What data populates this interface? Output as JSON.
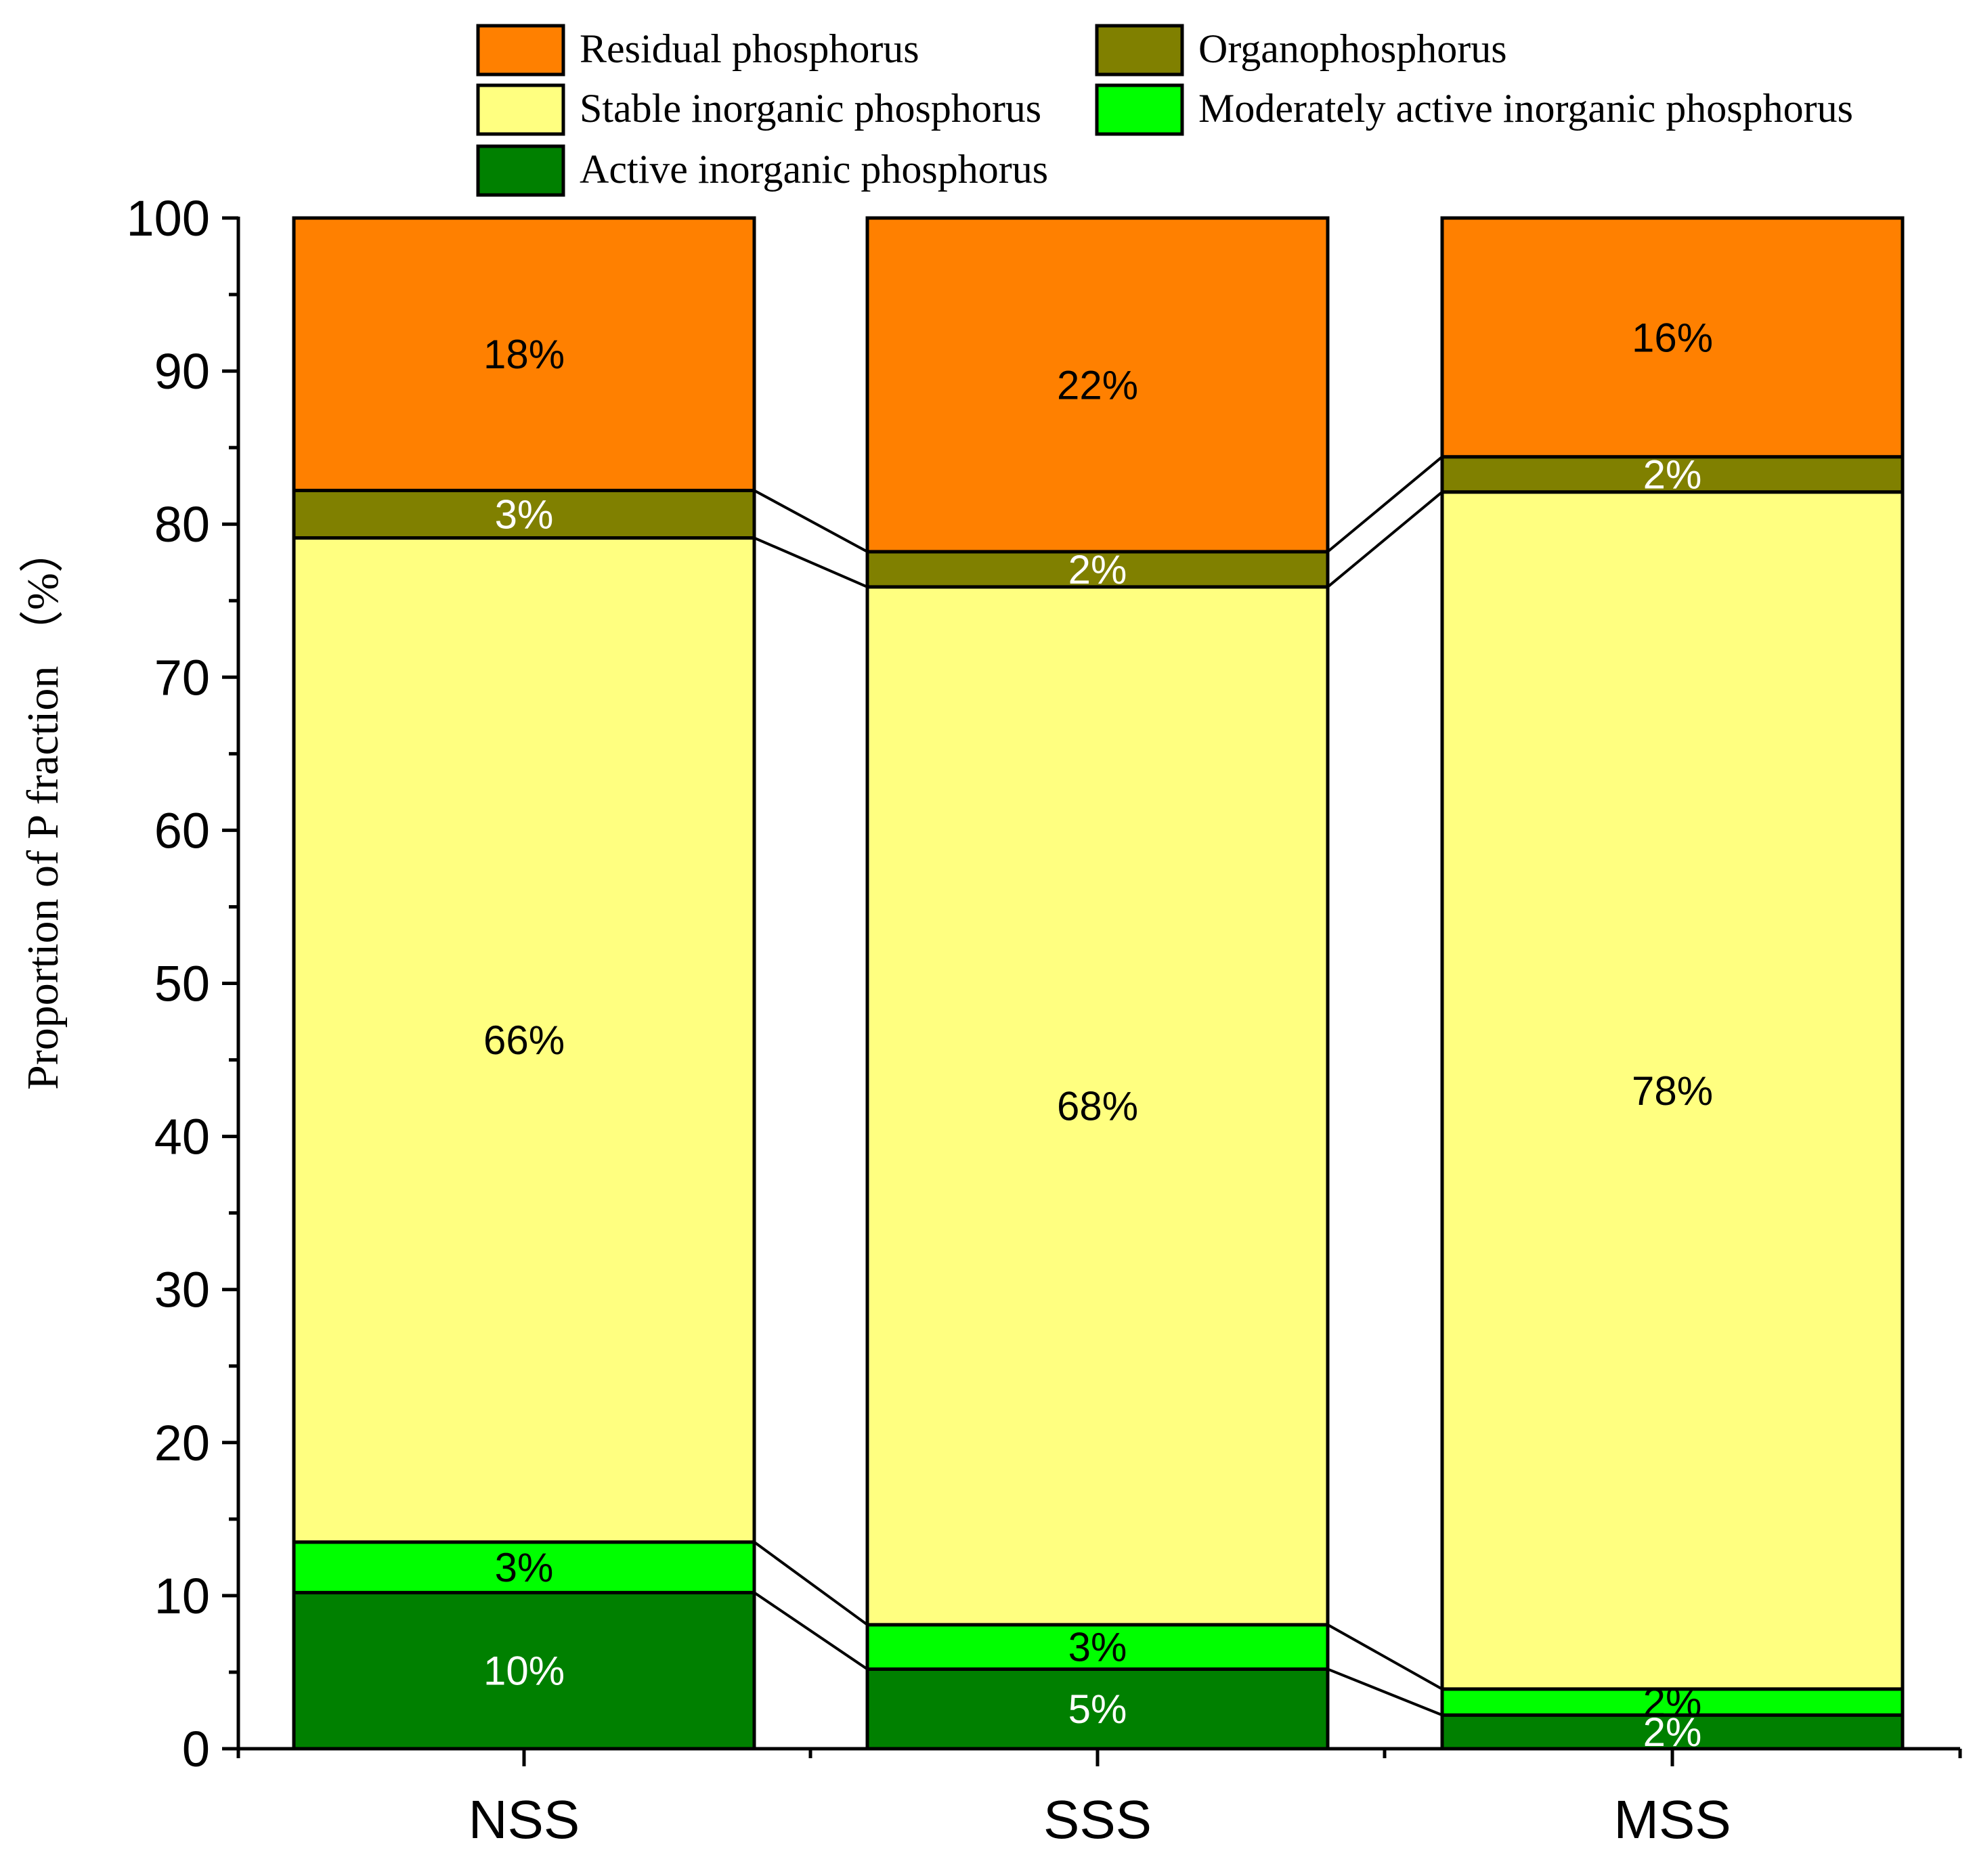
{
  "chart_data": {
    "type": "bar",
    "stacked": true,
    "ylabel": "Proportion of P fraction （%）",
    "xlabel": "",
    "ylim": [
      0,
      100
    ],
    "yticks": [
      0,
      10,
      20,
      30,
      40,
      50,
      60,
      70,
      80,
      90,
      100
    ],
    "categories": [
      "NSS",
      "SSS",
      "MSS"
    ],
    "legend_position": "top",
    "series": [
      {
        "name": "Active inorganic phosphorus",
        "color": "#008000",
        "label_color": "#ffffff",
        "values": [
          10.2,
          5.2,
          2.2
        ],
        "labels": [
          "10%",
          "5%",
          "2%"
        ]
      },
      {
        "name": "Moderately active inorganic phosphorus",
        "color": "#00ff00",
        "label_color": "#000000",
        "values": [
          3.3,
          2.9,
          1.7
        ],
        "labels": [
          "3%",
          "3%",
          "2%"
        ]
      },
      {
        "name": "Stable inorganic phosphorus",
        "color": "#ffff80",
        "label_color": "#000000",
        "values": [
          65.6,
          67.8,
          78.2
        ],
        "labels": [
          "66%",
          "68%",
          "78%"
        ]
      },
      {
        "name": "Organophosphorus",
        "color": "#808000",
        "label_color": "#ffffff",
        "values": [
          3.1,
          2.3,
          2.3
        ],
        "labels": [
          "3%",
          "2%",
          "2%"
        ]
      },
      {
        "name": "Residual phosphorus",
        "color": "#ff8000",
        "label_color": "#000000",
        "values": [
          17.8,
          21.8,
          15.6
        ],
        "labels": [
          "18%",
          "22%",
          "16%"
        ]
      }
    ],
    "legend_order": [
      "Residual phosphorus",
      "Organophosphorus",
      "Stable inorganic phosphorus",
      "Moderately active inorganic phosphorus",
      "Active inorganic phosphorus"
    ]
  }
}
